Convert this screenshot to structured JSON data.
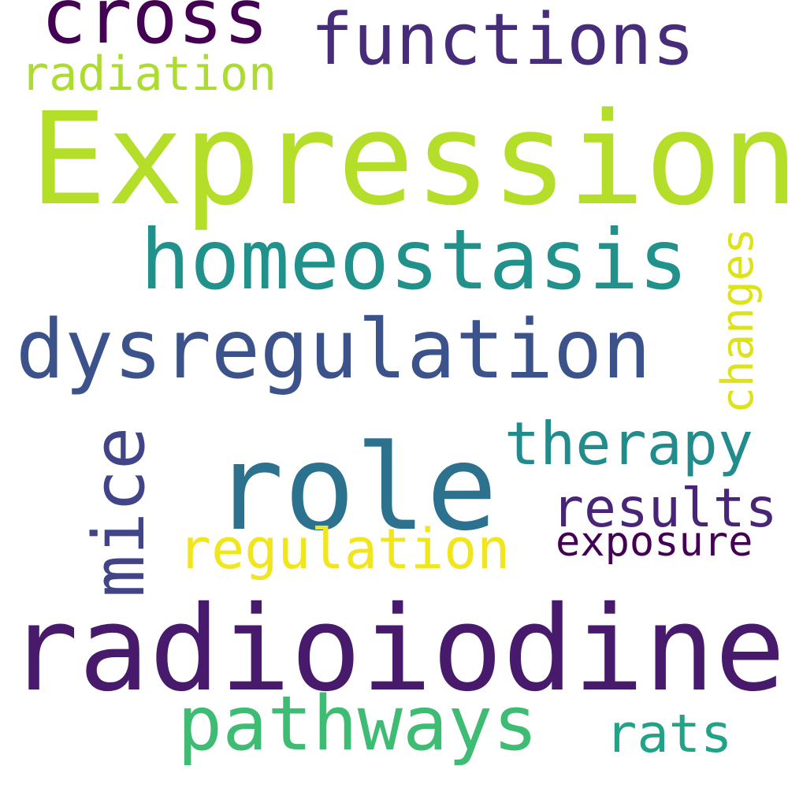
{
  "words": {
    "expression": {
      "text": "Expression",
      "color": "#b5de2b"
    },
    "radioiodine": {
      "text": "radioiodine",
      "color": "#481a6c"
    },
    "role": {
      "text": "role",
      "color": "#2c728e"
    },
    "homeostasis": {
      "text": "homeostasis",
      "color": "#21918c"
    },
    "dysregulation": {
      "text": "dysregulation",
      "color": "#3b528b"
    },
    "pathways": {
      "text": "pathways",
      "color": "#3fbc73"
    },
    "cross": {
      "text": "cross",
      "color": "#440154"
    },
    "functions": {
      "text": "functions",
      "color": "#472c7a"
    },
    "regulation": {
      "text": "regulation",
      "color": "#f1e51d"
    },
    "therapy": {
      "text": "therapy",
      "color": "#228c8d"
    },
    "results": {
      "text": "results",
      "color": "#482576"
    },
    "exposure": {
      "text": "exposure",
      "color": "#440154"
    },
    "rats": {
      "text": "rats",
      "color": "#20a386"
    },
    "radiation": {
      "text": "radiation",
      "color": "#addc30"
    },
    "mice": {
      "text": "mice",
      "color": "#414487"
    },
    "changes": {
      "text": "changes",
      "color": "#dde318"
    }
  }
}
